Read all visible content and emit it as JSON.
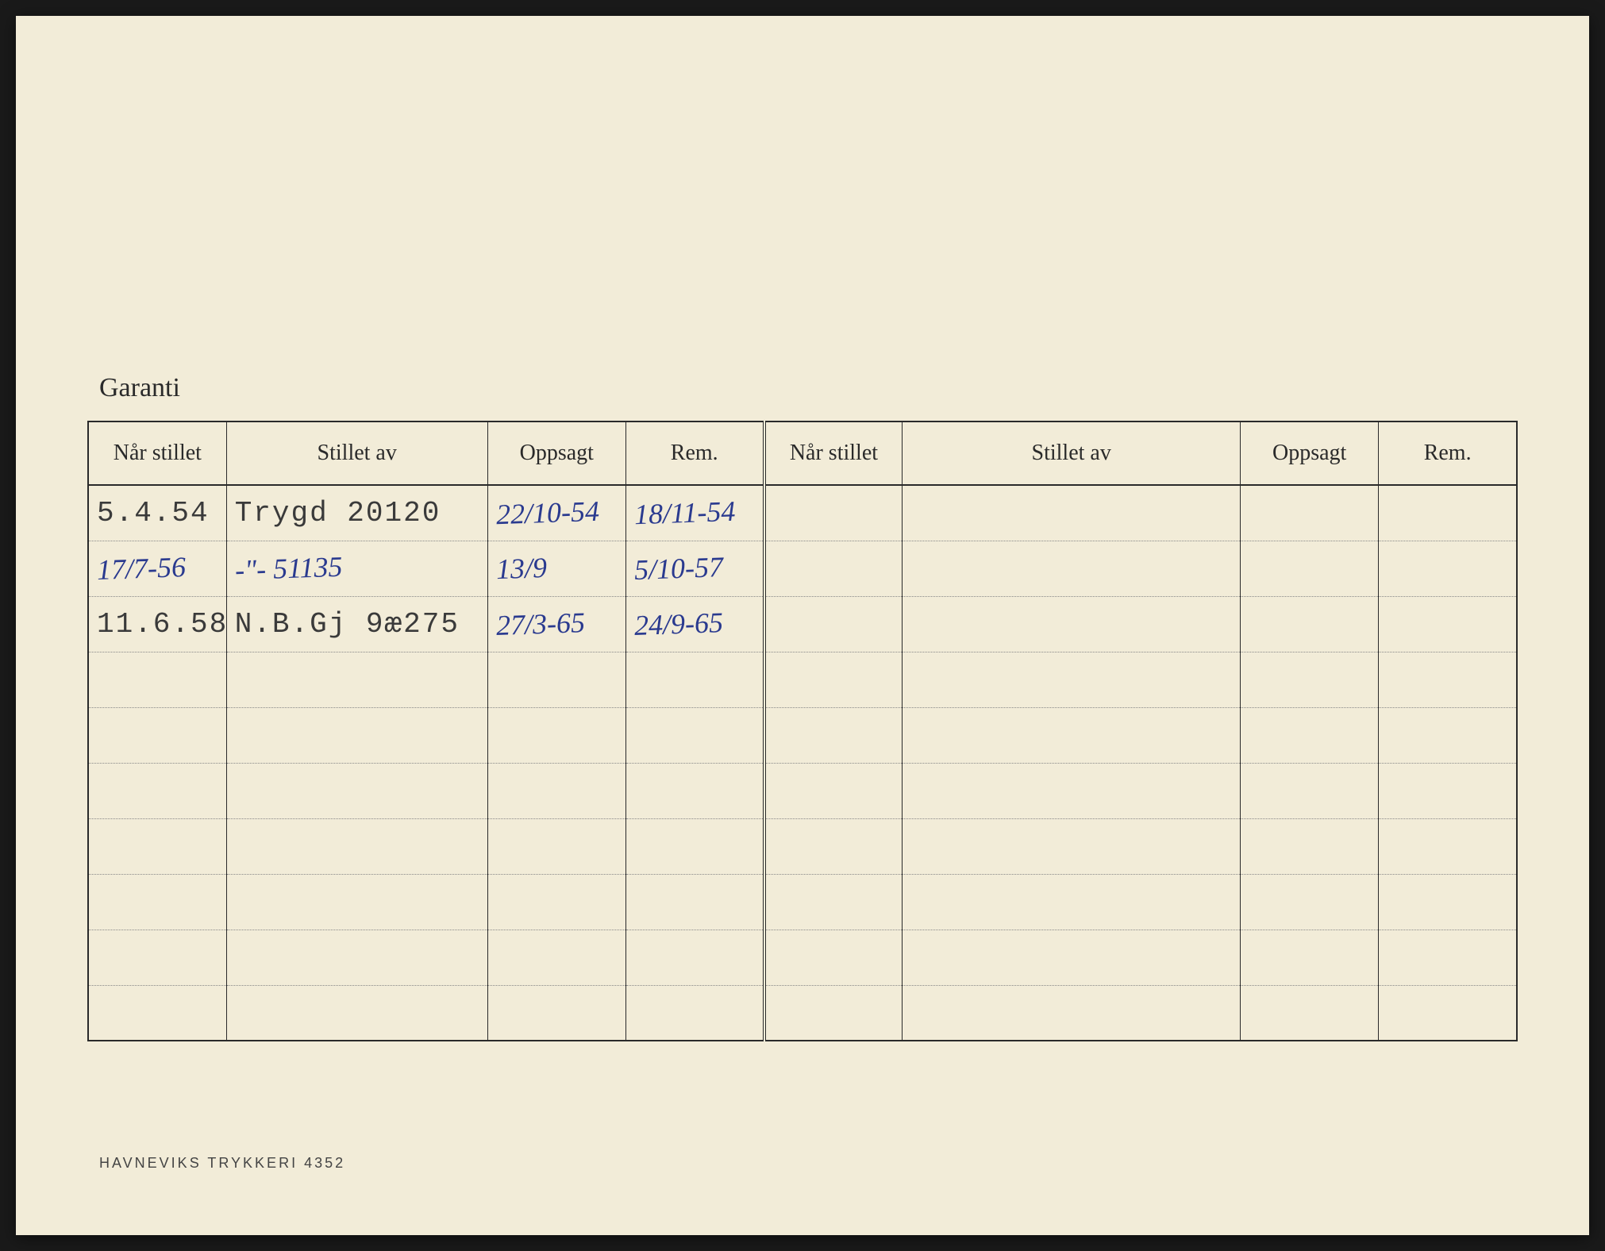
{
  "card": {
    "background_color": "#f2ecd8",
    "border_color": "#2a2a2a",
    "dotted_color": "#888888"
  },
  "title": "Garanti",
  "headers": {
    "c1": "Når stillet",
    "c2": "Stillet av",
    "c3": "Oppsagt",
    "c4": "Rem.",
    "c5": "Når stillet",
    "c6": "Stillet av",
    "c7": "Oppsagt",
    "c8": "Rem."
  },
  "rows": [
    {
      "c1_typed": "5.4.54",
      "c2_typed": "Trygd  20120",
      "c3_hand": "22/10-54",
      "c4_hand": "18/11-54"
    },
    {
      "c1_hand": "17/7-56",
      "c2_hand": "-\"-   51135",
      "c3_hand": "13/9",
      "c4_hand": "5/10-57"
    },
    {
      "c1_typed": "11.6.58",
      "c2_typed": "N.B.Gj 9æ275",
      "c3_hand": "27/3-65",
      "c4_hand": "24/9-65"
    }
  ],
  "blank_rows_after": 7,
  "footer": "HAVNEVIKS TRYKKERI 4352",
  "fonts": {
    "header_family": "Georgia",
    "header_size_pt": 21,
    "typed_family": "Courier New",
    "typed_size_pt": 27,
    "hand_family": "Segoe Script",
    "hand_color": "#2a3a8f",
    "footer_size_pt": 14
  }
}
